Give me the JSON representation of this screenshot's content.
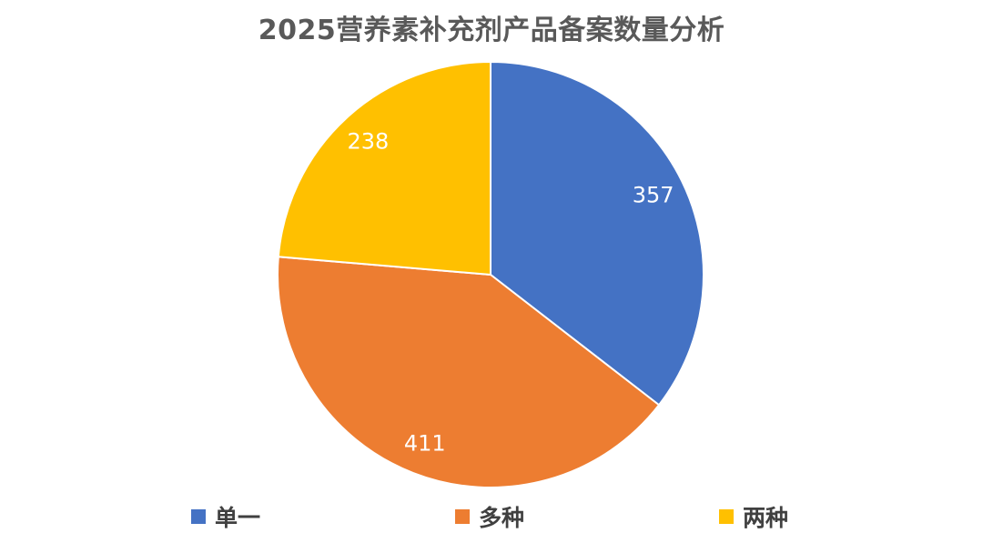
{
  "chart_data": {
    "type": "pie",
    "title": "2025营养素补充剂产品备案数量分析",
    "categories": [
      "单一",
      "多种",
      "两种"
    ],
    "values": [
      357,
      411,
      238
    ],
    "colors": [
      "#4472C4",
      "#ED7D31",
      "#FFC000"
    ],
    "data_labels": [
      "357",
      "411",
      "238"
    ],
    "start_angle_deg": 0,
    "direction": "clockwise",
    "legend_position": "bottom"
  }
}
